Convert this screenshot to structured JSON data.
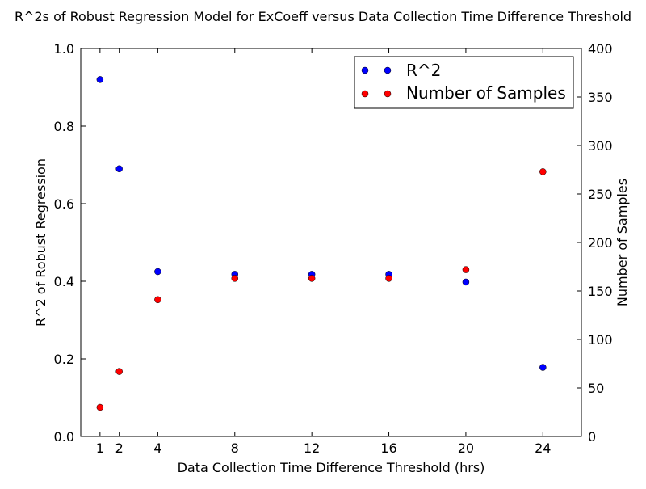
{
  "chart_data": {
    "type": "scatter",
    "title": "R^2s of Robust Regression Model for ExCoeff versus Data Collection Time Difference Threshold",
    "xlabel": "Data Collection Time Difference Threshold (hrs)",
    "ylabel_left": "R^2 of Robust Regression",
    "ylabel_right": "Number of Samples",
    "xlim": [
      0,
      26
    ],
    "ylim_left": [
      0.0,
      1.0
    ],
    "ylim_right": [
      0,
      400
    ],
    "x_ticks": [
      1,
      2,
      4,
      8,
      12,
      16,
      20,
      24
    ],
    "y_left_ticks": [
      "0.0",
      "0.2",
      "0.4",
      "0.6",
      "0.8",
      "1.0"
    ],
    "y_right_ticks": [
      "0",
      "50",
      "100",
      "150",
      "200",
      "250",
      "300",
      "350",
      "400"
    ],
    "grid": false,
    "legend_position": "top-right",
    "series": [
      {
        "name": "R^2",
        "axis": "left",
        "color": "#0000ff",
        "x": [
          1,
          2,
          4,
          8,
          12,
          16,
          20,
          24
        ],
        "y": [
          0.92,
          0.69,
          0.425,
          0.418,
          0.418,
          0.418,
          0.398,
          0.178
        ]
      },
      {
        "name": "Number of Samples",
        "axis": "right",
        "color": "#ff0000",
        "x": [
          1,
          2,
          4,
          8,
          12,
          16,
          20,
          24
        ],
        "y": [
          30,
          67,
          141,
          163,
          163,
          163,
          172,
          273
        ]
      }
    ]
  }
}
